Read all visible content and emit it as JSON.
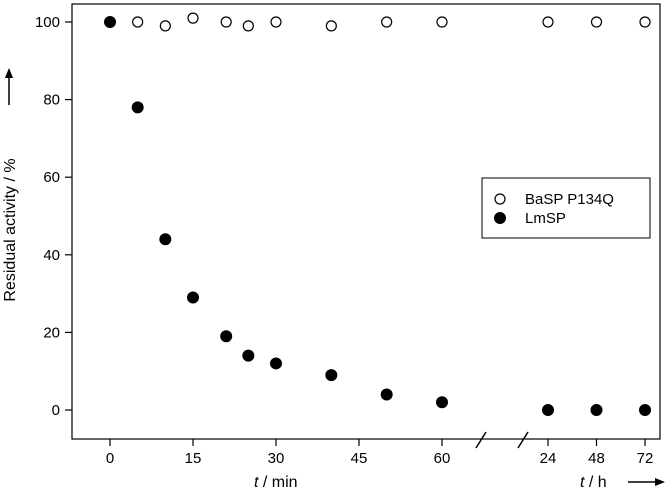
{
  "chart_data": {
    "type": "scatter",
    "ylabel": "Residual activity / %",
    "ylim": [
      0,
      100
    ],
    "yticks": [
      0,
      20,
      40,
      60,
      80,
      100
    ],
    "x_segments": [
      {
        "xlabel_var": "t",
        "xlabel_unit": " / min",
        "xlim": [
          -3,
          65
        ],
        "xticks": [
          0,
          15,
          30,
          45,
          60
        ]
      },
      {
        "xlabel_var": "t",
        "xlabel_unit": " / h",
        "xlim": [
          24,
          72
        ],
        "xticks": [
          24,
          48,
          72
        ]
      }
    ],
    "legend_position": "right",
    "series": [
      {
        "name": "BaSP P134Q",
        "marker": "open-circle",
        "points": [
          {
            "x": 0,
            "y": 100,
            "segment": 0
          },
          {
            "x": 5,
            "y": 100,
            "segment": 0
          },
          {
            "x": 10,
            "y": 99,
            "segment": 0
          },
          {
            "x": 15,
            "y": 101,
            "segment": 0
          },
          {
            "x": 21,
            "y": 100,
            "segment": 0
          },
          {
            "x": 25,
            "y": 99,
            "segment": 0
          },
          {
            "x": 30,
            "y": 100,
            "segment": 0
          },
          {
            "x": 40,
            "y": 99,
            "segment": 0
          },
          {
            "x": 50,
            "y": 100,
            "segment": 0
          },
          {
            "x": 60,
            "y": 100,
            "segment": 0
          },
          {
            "x": 24,
            "y": 100,
            "segment": 1
          },
          {
            "x": 48,
            "y": 100,
            "segment": 1
          },
          {
            "x": 72,
            "y": 100,
            "segment": 1
          }
        ]
      },
      {
        "name": "LmSP",
        "marker": "filled-circle",
        "points": [
          {
            "x": 0,
            "y": 100,
            "segment": 0
          },
          {
            "x": 5,
            "y": 78,
            "segment": 0
          },
          {
            "x": 10,
            "y": 44,
            "segment": 0
          },
          {
            "x": 15,
            "y": 29,
            "segment": 0
          },
          {
            "x": 21,
            "y": 19,
            "segment": 0
          },
          {
            "x": 25,
            "y": 14,
            "segment": 0
          },
          {
            "x": 30,
            "y": 12,
            "segment": 0
          },
          {
            "x": 40,
            "y": 9,
            "segment": 0
          },
          {
            "x": 50,
            "y": 4,
            "segment": 0
          },
          {
            "x": 60,
            "y": 2,
            "segment": 0
          },
          {
            "x": 24,
            "y": 0,
            "segment": 1
          },
          {
            "x": 48,
            "y": 0,
            "segment": 1
          },
          {
            "x": 72,
            "y": 0,
            "segment": 1
          }
        ]
      }
    ]
  }
}
